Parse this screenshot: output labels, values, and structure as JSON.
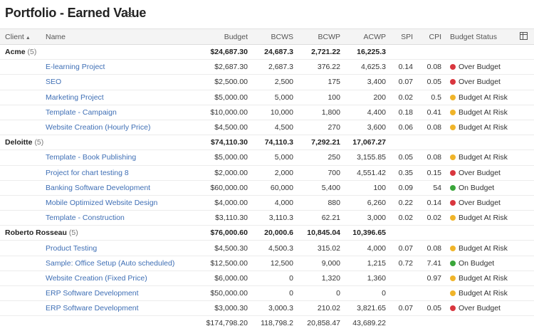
{
  "title": "Portfolio - Earned Value",
  "columns": {
    "client": "Client",
    "name": "Name",
    "budget": "Budget",
    "bcws": "BCWS",
    "bcwp": "BCWP",
    "acwp": "ACWP",
    "spi": "SPI",
    "cpi": "CPI",
    "status": "Budget Status"
  },
  "status_colors": {
    "Over Budget": "#d9363e",
    "Budget At Risk": "#f0b429",
    "On Budget": "#3aa63a"
  },
  "groups": [
    {
      "client": "Acme",
      "count": "(5)",
      "budget": "$24,687.30",
      "bcws": "24,687.3",
      "bcwp": "2,721.22",
      "acwp": "16,225.3",
      "rows": [
        {
          "name": "E-learning Project",
          "budget": "$2,687.30",
          "bcws": "2,687.3",
          "bcwp": "376.22",
          "acwp": "4,625.3",
          "spi": "0.14",
          "cpi": "0.08",
          "status": "Over Budget"
        },
        {
          "name": "SEO",
          "budget": "$2,500.00",
          "bcws": "2,500",
          "bcwp": "175",
          "acwp": "3,400",
          "spi": "0.07",
          "cpi": "0.05",
          "status": "Over Budget"
        },
        {
          "name": "Marketing Project",
          "budget": "$5,000.00",
          "bcws": "5,000",
          "bcwp": "100",
          "acwp": "200",
          "spi": "0.02",
          "cpi": "0.5",
          "status": "Budget At Risk"
        },
        {
          "name": "Template - Campaign",
          "budget": "$10,000.00",
          "bcws": "10,000",
          "bcwp": "1,800",
          "acwp": "4,400",
          "spi": "0.18",
          "cpi": "0.41",
          "status": "Budget At Risk"
        },
        {
          "name": "Website Creation (Hourly Price)",
          "budget": "$4,500.00",
          "bcws": "4,500",
          "bcwp": "270",
          "acwp": "3,600",
          "spi": "0.06",
          "cpi": "0.08",
          "status": "Budget At Risk"
        }
      ]
    },
    {
      "client": "Deloitte",
      "count": "(5)",
      "budget": "$74,110.30",
      "bcws": "74,110.3",
      "bcwp": "7,292.21",
      "acwp": "17,067.27",
      "rows": [
        {
          "name": "Template - Book Publishing",
          "budget": "$5,000.00",
          "bcws": "5,000",
          "bcwp": "250",
          "acwp": "3,155.85",
          "spi": "0.05",
          "cpi": "0.08",
          "status": "Budget At Risk"
        },
        {
          "name": "Project for chart testing 8",
          "budget": "$2,000.00",
          "bcws": "2,000",
          "bcwp": "700",
          "acwp": "4,551.42",
          "spi": "0.35",
          "cpi": "0.15",
          "status": "Over Budget"
        },
        {
          "name": "Banking Software Development",
          "budget": "$60,000.00",
          "bcws": "60,000",
          "bcwp": "5,400",
          "acwp": "100",
          "spi": "0.09",
          "cpi": "54",
          "status": "On Budget"
        },
        {
          "name": "Mobile Optimized Website Design",
          "budget": "$4,000.00",
          "bcws": "4,000",
          "bcwp": "880",
          "acwp": "6,260",
          "spi": "0.22",
          "cpi": "0.14",
          "status": "Over Budget"
        },
        {
          "name": "Template - Construction",
          "budget": "$3,110.30",
          "bcws": "3,110.3",
          "bcwp": "62.21",
          "acwp": "3,000",
          "spi": "0.02",
          "cpi": "0.02",
          "status": "Budget At Risk"
        }
      ]
    },
    {
      "client": "Roberto Rosseau",
      "count": "(5)",
      "budget": "$76,000.60",
      "bcws": "20,000.6",
      "bcwp": "10,845.04",
      "acwp": "10,396.65",
      "rows": [
        {
          "name": "Product Testing",
          "budget": "$4,500.30",
          "bcws": "4,500.3",
          "bcwp": "315.02",
          "acwp": "4,000",
          "spi": "0.07",
          "cpi": "0.08",
          "status": "Budget At Risk"
        },
        {
          "name": "Sample: Office Setup (Auto scheduled)",
          "budget": "$12,500.00",
          "bcws": "12,500",
          "bcwp": "9,000",
          "acwp": "1,215",
          "spi": "0.72",
          "cpi": "7.41",
          "status": "On Budget"
        },
        {
          "name": "Website Creation (Fixed Price)",
          "budget": "$6,000.00",
          "bcws": "0",
          "bcwp": "1,320",
          "acwp": "1,360",
          "spi": "",
          "cpi": "0.97",
          "status": "Budget At Risk"
        },
        {
          "name": "ERP Software Development",
          "budget": "$50,000.00",
          "bcws": "0",
          "bcwp": "0",
          "acwp": "0",
          "spi": "",
          "cpi": "",
          "status": "Budget At Risk"
        },
        {
          "name": "ERP Software Development",
          "budget": "$3,000.30",
          "bcws": "3,000.3",
          "bcwp": "210.02",
          "acwp": "3,821.65",
          "spi": "0.07",
          "cpi": "0.05",
          "status": "Over Budget"
        }
      ]
    }
  ],
  "totals": {
    "budget": "$174,798.20",
    "bcws": "118,798.2",
    "bcwp": "20,858.47",
    "acwp": "43,689.22"
  }
}
